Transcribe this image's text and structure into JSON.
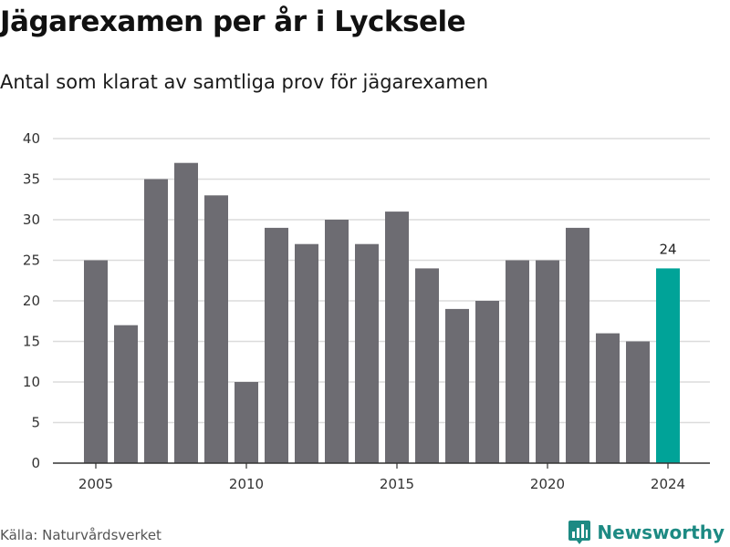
{
  "header": {
    "title": "Jägarexamen per år i Lycksele",
    "subtitle": "Antal som klarat av samtliga prov för jägarexamen"
  },
  "footer": {
    "source": "Källa: Naturvårdsverket",
    "brand": "Newsworthy",
    "brand_icon": "bar-chart-logo-icon"
  },
  "colors": {
    "bar": "#6d6c72",
    "highlight": "#00a398",
    "grid": "#dcdcdc",
    "axis": "#333333",
    "brand": "#1d8a83"
  },
  "chart_data": {
    "type": "bar",
    "title": "Jägarexamen per år i Lycksele",
    "subtitle": "Antal som klarat av samtliga prov för jägarexamen",
    "xlabel": "",
    "ylabel": "",
    "categories": [
      2005,
      2006,
      2007,
      2008,
      2009,
      2010,
      2011,
      2012,
      2013,
      2014,
      2015,
      2016,
      2017,
      2018,
      2019,
      2020,
      2021,
      2022,
      2023,
      2024
    ],
    "values": [
      25,
      17,
      35,
      37,
      33,
      10,
      29,
      27,
      30,
      27,
      31,
      24,
      19,
      20,
      25,
      25,
      29,
      16,
      15,
      24
    ],
    "highlight_category": 2024,
    "data_labels": [
      {
        "category": 2024,
        "text": "24"
      }
    ],
    "x_ticks": [
      2005,
      2010,
      2015,
      2020,
      2024
    ],
    "y_ticks": [
      0,
      5,
      10,
      15,
      20,
      25,
      30,
      35,
      40
    ],
    "ylim": [
      0,
      40
    ],
    "grid": true,
    "legend": "none"
  }
}
